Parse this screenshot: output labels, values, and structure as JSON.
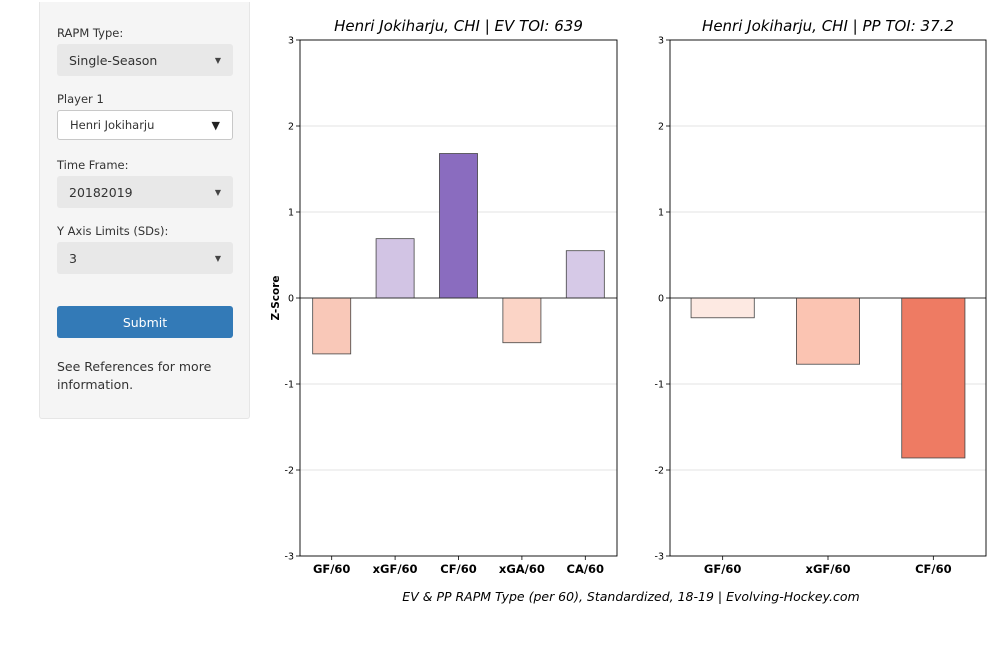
{
  "sidebar": {
    "rapm_type": {
      "label": "RAPM Type:",
      "value": "Single-Season"
    },
    "player1": {
      "label": "Player 1",
      "value": "Henri Jokiharju"
    },
    "time_frame": {
      "label": "Time Frame:",
      "value": "20182019"
    },
    "y_axis_limits": {
      "label": "Y Axis Limits (SDs):",
      "value": "3"
    },
    "submit_label": "Submit",
    "help_text": "See References for more information."
  },
  "caption": "EV & PP RAPM Type (per 60), Standardized, 18-19   |   Evolving-Hockey.com",
  "chart_data": [
    {
      "type": "bar",
      "title": "Henri Jokiharju, CHI  |  EV TOI: 639",
      "ylabel": "Z-Score",
      "ylim": [
        -3,
        3
      ],
      "yticks": [
        -3,
        -2,
        -1,
        0,
        1,
        2,
        3
      ],
      "grid": "horizontal",
      "categories": [
        "GF/60",
        "xGF/60",
        "CF/60",
        "xGA/60",
        "CA/60"
      ],
      "values": [
        -0.65,
        0.69,
        1.68,
        -0.52,
        0.55
      ],
      "colors": [
        "#f9c8b8",
        "#d2c4e4",
        "#8a6cbf",
        "#fbd4c6",
        "#d6c9e7"
      ]
    },
    {
      "type": "bar",
      "title": "Henri Jokiharju, CHI  |  PP TOI: 37.2",
      "ylabel": "",
      "ylim": [
        -3,
        3
      ],
      "yticks": [
        -3,
        -2,
        -1,
        0,
        1,
        2,
        3
      ],
      "grid": "horizontal",
      "categories": [
        "GF/60",
        "xGF/60",
        "CF/60"
      ],
      "values": [
        -0.23,
        -0.77,
        -1.86
      ],
      "colors": [
        "#fde9e2",
        "#fbc4b2",
        "#ee7b63"
      ]
    }
  ]
}
